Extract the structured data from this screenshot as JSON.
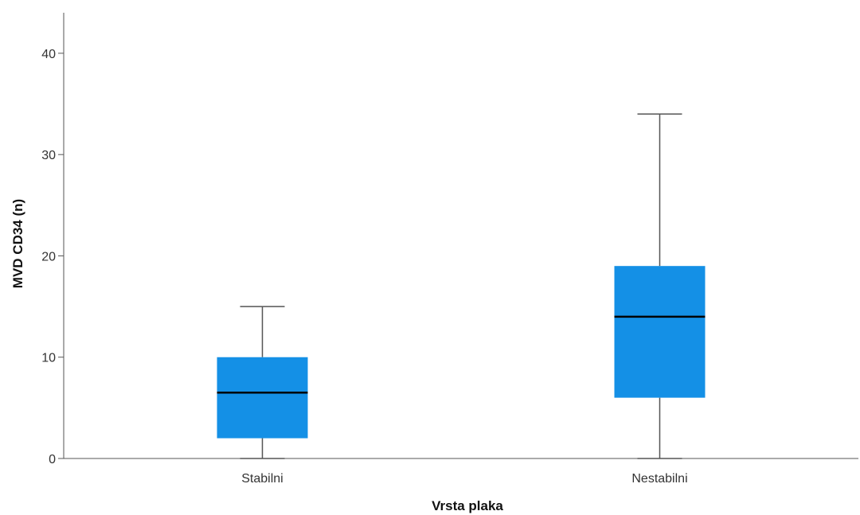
{
  "chart_data": {
    "type": "box",
    "xlabel": "Vrsta plaka",
    "ylabel": "MVD CD34 (n)",
    "ylim": [
      0,
      44
    ],
    "yticks": [
      0,
      10,
      20,
      30,
      40
    ],
    "grid": false,
    "categories": [
      "Stabilni",
      "Nestabilni"
    ],
    "boxes": [
      {
        "category": "Stabilni",
        "min": 0,
        "q1": 2,
        "median": 6.5,
        "q3": 10,
        "max": 15
      },
      {
        "category": "Nestabilni",
        "min": 0,
        "q1": 6,
        "median": 14,
        "q3": 19,
        "max": 34
      }
    ],
    "colors": {
      "box_fill": "#1490e6",
      "median": "#000000",
      "whisker": "#555555",
      "axis": "#555555"
    }
  }
}
